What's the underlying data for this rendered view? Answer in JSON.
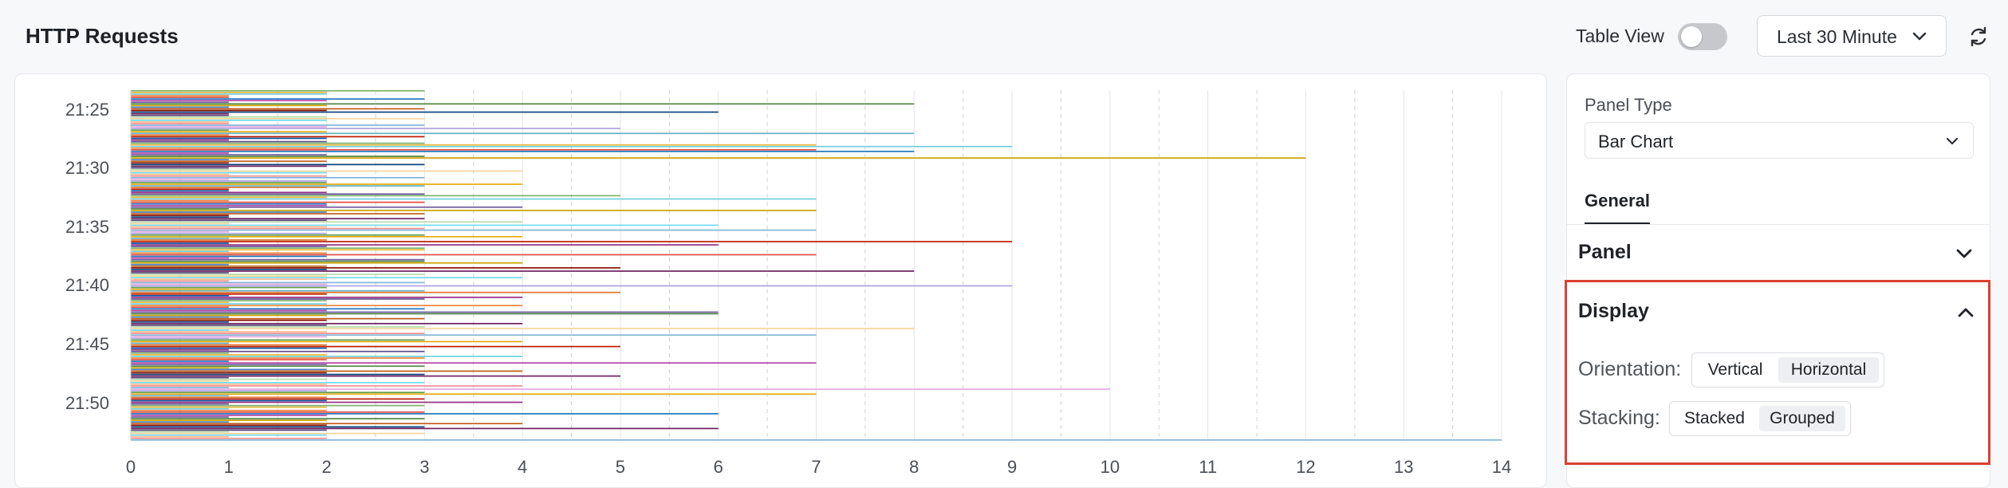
{
  "header": {
    "title": "HTTP Requests",
    "table_view_label": "Table View",
    "table_view_on": false,
    "time_range": "Last 30 Minute"
  },
  "side_panel": {
    "panel_type_label": "Panel Type",
    "panel_type_value": "Bar Chart",
    "tabs": [
      "General"
    ],
    "sections": {
      "panel": "Panel",
      "display": "Display"
    },
    "display": {
      "orientation_label": "Orientation:",
      "orientation_options": [
        "Vertical",
        "Horizontal"
      ],
      "orientation_selected": "Horizontal",
      "stacking_label": "Stacking:",
      "stacking_options": [
        "Stacked",
        "Grouped"
      ],
      "stacking_selected": "Grouped"
    },
    "highlight_color": "#d9412f"
  },
  "chart_data": {
    "type": "bar",
    "orientation": "horizontal",
    "stacking": "grouped",
    "grid": true,
    "x_ticks": [
      0,
      1,
      2,
      3,
      4,
      5,
      6,
      7,
      8,
      9,
      10,
      11,
      12,
      13,
      14
    ],
    "xlim": [
      0,
      14
    ],
    "y_ticks": [
      "21:25",
      "21:30",
      "21:35",
      "21:40",
      "21:45",
      "21:50"
    ],
    "bar_values": [
      3,
      2,
      2,
      1,
      1,
      3,
      2,
      1,
      8,
      2,
      1,
      3,
      2,
      6,
      1,
      1,
      2,
      3,
      2,
      1,
      1,
      3,
      2,
      5,
      1,
      2,
      8,
      1,
      3,
      2,
      1,
      2,
      3,
      7,
      9,
      2,
      7,
      8,
      1,
      2,
      3,
      12,
      1,
      2,
      1,
      3,
      2,
      1,
      1,
      4,
      2,
      1,
      2,
      3,
      1,
      2,
      2,
      4,
      3,
      2,
      1,
      1,
      2,
      3,
      5,
      2,
      7,
      1,
      3,
      2,
      2,
      4,
      1,
      7,
      2,
      3,
      1,
      1,
      3,
      2,
      4,
      1,
      6,
      2,
      3,
      7,
      1,
      2,
      3,
      4,
      1,
      2,
      9,
      1,
      6,
      2,
      3,
      3,
      1,
      2,
      7,
      2,
      1,
      3,
      3,
      4,
      1,
      2,
      5,
      2,
      8,
      1,
      3,
      2,
      4,
      2,
      1,
      3,
      2,
      9,
      2,
      1,
      3,
      5,
      2,
      1,
      4,
      3,
      2,
      1,
      2,
      4,
      1,
      3,
      2,
      6,
      6,
      2,
      1,
      3,
      2,
      1,
      4,
      2,
      3,
      8,
      1,
      2,
      3,
      7,
      2,
      1,
      3,
      4,
      1,
      2,
      5,
      2,
      1,
      3,
      1,
      2,
      4,
      3,
      2,
      1,
      7,
      2,
      3,
      1,
      2,
      4,
      2,
      3,
      5,
      1,
      2,
      1,
      3,
      2,
      4,
      1,
      10,
      2,
      3,
      7,
      1,
      2,
      3,
      2,
      4,
      1,
      3,
      2,
      1,
      2,
      3,
      6,
      2,
      1,
      3,
      2,
      1,
      4,
      2,
      3,
      6,
      2,
      1,
      3,
      2,
      1,
      2,
      14
    ],
    "series_colors": [
      "#7eb26d",
      "#eab839",
      "#6ed0e0",
      "#ef843c",
      "#e24d42",
      "#1f78c1",
      "#ba43a9",
      "#705da0",
      "#508642",
      "#cca300",
      "#447ebc",
      "#c15c17",
      "#890f02",
      "#0a437c",
      "#6d1f62",
      "#584477",
      "#b7dbab",
      "#f4d598",
      "#70dbed",
      "#f9ba8f",
      "#f29191",
      "#82b5d8",
      "#e5a8e2",
      "#aea2e0",
      "#629e51",
      "#e5ac0e",
      "#64b0c8",
      "#e0752d",
      "#bf1b00",
      "#0a50a1",
      "#962d82",
      "#614d93"
    ]
  }
}
